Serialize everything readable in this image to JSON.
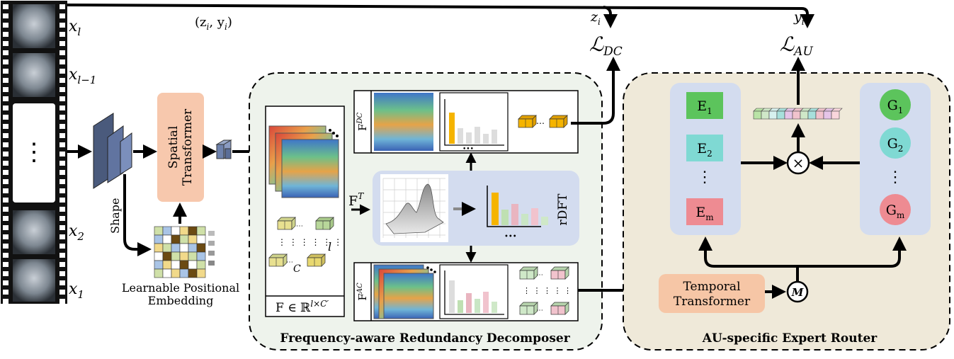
{
  "film_labels": {
    "xl": "x",
    "xl_sub": "l",
    "xl1": "x",
    "xl1_sub": "l−1",
    "x2": "x",
    "x2_sub": "2",
    "x1": "x",
    "x1_sub": "1",
    "dots": "⋮"
  },
  "top_pair": "(z",
  "top_pair_i": "i",
  "top_pair_rest": ", y",
  "top_pair_i2": "i",
  "top_pair_close": ")",
  "shape_label": "Shape",
  "spatial_transformer": {
    "line1": "Spatial",
    "line2": "Transformer"
  },
  "positional_embedding": {
    "line1": "Learnable Positional",
    "line2": "Embedding"
  },
  "frd": {
    "title": "Frequency-aware Redundancy Decomposer",
    "f_label": "F ∈ ℝ",
    "f_sup": "l×C′",
    "fT": "F",
    "fT_sup": "T",
    "fDC": "F",
    "fDC_sup": "DC",
    "fAC": "F",
    "fAC_sup": "AC",
    "rdft": "rDFT",
    "l_label": "l",
    "c_label": "C",
    "ellipsis": "•••"
  },
  "losses": {
    "dc": "ℒ",
    "dc_sub": "DC",
    "au": "ℒ",
    "au_sub": "AU",
    "zi": "z",
    "zi_sub": "i",
    "yi": "y",
    "yi_sub": "i"
  },
  "router": {
    "title": "AU-specific Expert Router",
    "e1": "E",
    "e1_sub": "1",
    "e2": "E",
    "e2_sub": "2",
    "em": "E",
    "em_sub": "m",
    "g1": "G",
    "g1_sub": "1",
    "g2": "G",
    "g2_sub": "2",
    "gm": "G",
    "gm_sub": "m",
    "vdots": "⋮",
    "times": "×",
    "m_symbol": "M",
    "temporal": {
      "line1": "Temporal",
      "line2": "Transformer"
    }
  },
  "colors": {
    "frd_bg": "#eef3ec",
    "router_bg": "#efe9d9",
    "blue_panel": "#d3dcef",
    "spatial": "#f7c8ad",
    "temporal": "#f6c6a6",
    "expert_green": "#5cc45c",
    "expert_cyan": "#7fd9d3",
    "expert_pink": "#ee8b92",
    "orange_bar": "#f5b400"
  }
}
